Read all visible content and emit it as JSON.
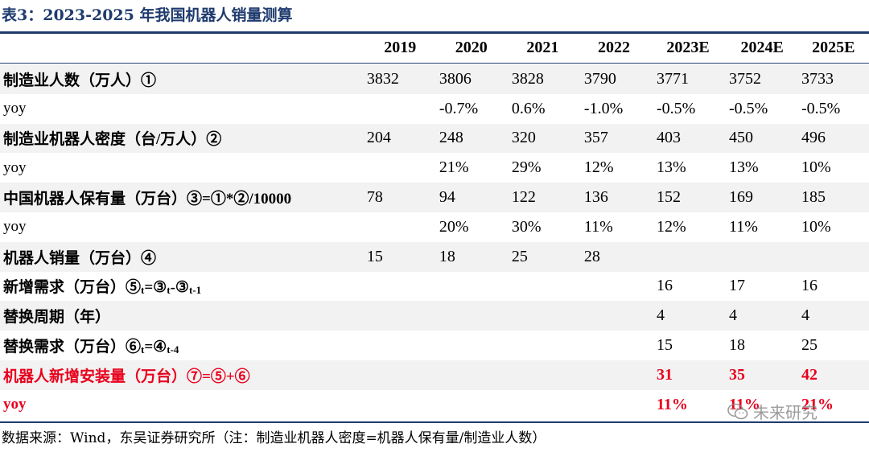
{
  "title": "表3：2023-2025 年我国机器人销量测算",
  "columns": [
    "2019",
    "2020",
    "2021",
    "2022",
    "2023E",
    "2024E",
    "2025E"
  ],
  "rows": [
    {
      "label": "制造业人数（万人）①",
      "values": [
        "3832",
        "3806",
        "3828",
        "3790",
        "3771",
        "3752",
        "3733"
      ]
    },
    {
      "label": "yoy",
      "values": [
        "",
        "-0.7%",
        "0.6%",
        "-1.0%",
        "-0.5%",
        "-0.5%",
        "-0.5%"
      ]
    },
    {
      "label": "制造业机器人密度（台/万人）②",
      "values": [
        "204",
        "248",
        "320",
        "357",
        "403",
        "450",
        "496"
      ]
    },
    {
      "label": "yoy",
      "values": [
        "",
        "21%",
        "29%",
        "12%",
        "13%",
        "13%",
        "10%"
      ]
    },
    {
      "label": "中国机器人保有量（万台）③=①*②/10000",
      "values": [
        "78",
        "94",
        "122",
        "136",
        "152",
        "169",
        "185"
      ]
    },
    {
      "label": "yoy",
      "values": [
        "",
        "20%",
        "30%",
        "11%",
        "12%",
        "11%",
        "10%"
      ]
    },
    {
      "label": "机器人销量（万台）④",
      "values": [
        "15",
        "18",
        "25",
        "28",
        "",
        "",
        ""
      ]
    },
    {
      "label_prefix": "新增需求（万台）⑤",
      "label_sub1": "t",
      "label_mid": "=③",
      "label_sub2": "t",
      "label_mid2": "-③",
      "label_sub3": "t-1",
      "values": [
        "",
        "",
        "",
        "",
        "16",
        "17",
        "16"
      ]
    },
    {
      "label": "替换周期（年）",
      "values": [
        "",
        "",
        "",
        "",
        "4",
        "4",
        "4"
      ]
    },
    {
      "label_prefix": "替换需求（万台）⑥",
      "label_sub1": "t",
      "label_mid": "=④",
      "label_sub2": "t-4",
      "values": [
        "",
        "",
        "",
        "",
        "15",
        "18",
        "25"
      ]
    },
    {
      "label": "机器人新增安装量（万台）⑦=⑤+⑥",
      "values": [
        "",
        "",
        "",
        "",
        "31",
        "35",
        "42"
      ]
    },
    {
      "label": "yoy",
      "values": [
        "",
        "",
        "",
        "",
        "11%",
        "11%",
        "21%"
      ]
    }
  ],
  "source": "数据来源：Wind，东吴证券研究所（注：制造业机器人密度=机器人保有量/制造业人数）",
  "watermark": "未来研究",
  "colors": {
    "title": "#1f3b6e",
    "highlight": "#e8001c",
    "shade": "#f2f2f2"
  }
}
